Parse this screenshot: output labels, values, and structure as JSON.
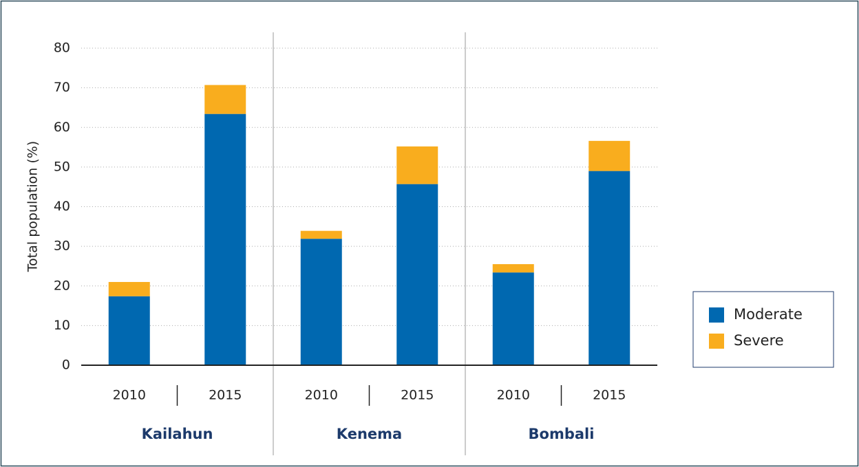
{
  "chart_data": {
    "type": "stacked_bar",
    "y_label": "Total population (%)",
    "categories": [
      "2010",
      "2015",
      "2010",
      "2015",
      "2010",
      "2015"
    ],
    "groups": [
      "Kailahun",
      "Kenema",
      "Bombali"
    ],
    "series": [
      {
        "name": "Moderate",
        "color": "#0068b0",
        "values": [
          17.4,
          63.4,
          31.9,
          45.7,
          23.4,
          49.0
        ]
      },
      {
        "name": "Severe",
        "color": "#f9ad1e",
        "values": [
          3.6,
          7.3,
          2.0,
          9.5,
          2.1,
          7.6
        ]
      }
    ],
    "ylim": [
      0,
      80
    ],
    "yticks": [
      0,
      10,
      20,
      30,
      40,
      50,
      60,
      70,
      80
    ],
    "grid": true,
    "legend": "right"
  }
}
